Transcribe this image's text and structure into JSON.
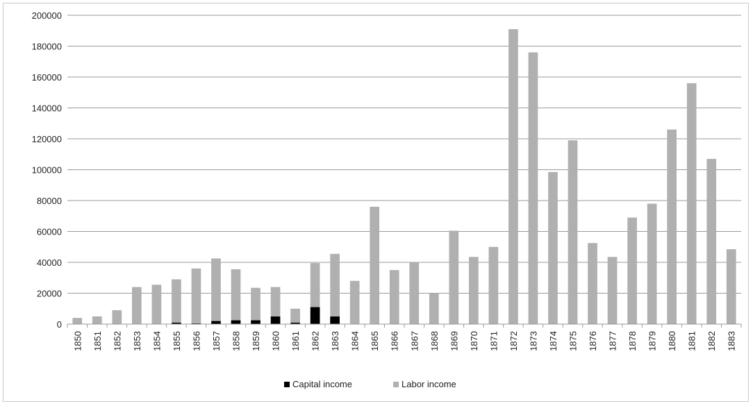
{
  "chart_data": {
    "type": "bar",
    "stacked": true,
    "categories": [
      "1850",
      "1851",
      "1852",
      "1853",
      "1854",
      "1855",
      "1856",
      "1857",
      "1858",
      "1859",
      "1860",
      "1861",
      "1862",
      "1863",
      "1864",
      "1865",
      "1866",
      "1867",
      "1868",
      "1869",
      "1870",
      "1871",
      "1872",
      "1873",
      "1874",
      "1875",
      "1876",
      "1877",
      "1878",
      "1879",
      "1880",
      "1881",
      "1882",
      "1883"
    ],
    "series": [
      {
        "name": "Capital income",
        "color": "#000000",
        "values": [
          0,
          0,
          0,
          0,
          0,
          1000,
          500,
          2000,
          2500,
          2500,
          5000,
          1000,
          11000,
          5000,
          0,
          0,
          0,
          0,
          0,
          0,
          0,
          0,
          0,
          0,
          0,
          0,
          0,
          0,
          0,
          0,
          0,
          0,
          0,
          0
        ]
      },
      {
        "name": "Labor income",
        "color": "#b0b0b0",
        "values": [
          4000,
          5000,
          9000,
          24000,
          25500,
          28000,
          35500,
          40500,
          33000,
          21000,
          19000,
          9000,
          28500,
          40500,
          28000,
          76000,
          35000,
          40000,
          20000,
          60500,
          43500,
          50000,
          191000,
          176000,
          98500,
          119000,
          52500,
          43500,
          69000,
          78000,
          126000,
          156000,
          107000,
          48500
        ]
      }
    ],
    "y_ticks": [
      "0",
      "20000",
      "40000",
      "60000",
      "80000",
      "100000",
      "120000",
      "140000",
      "160000",
      "180000",
      "200000"
    ],
    "ylim": [
      0,
      200000
    ],
    "grid": true,
    "legend_position": "bottom",
    "title": "",
    "xlabel": "",
    "ylabel": ""
  }
}
